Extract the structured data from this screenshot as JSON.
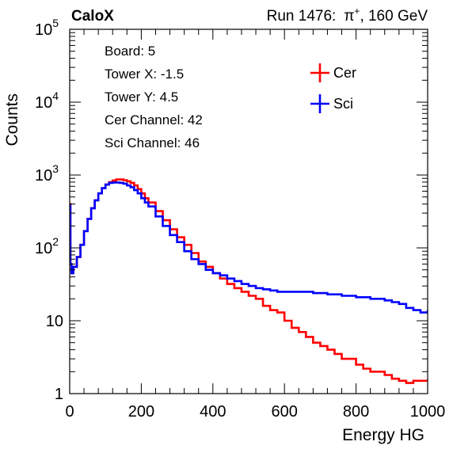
{
  "header": {
    "brand": "CaloX",
    "run": "Run 1476:",
    "particle": "π",
    "particle_charge": "+",
    "beam_energy": ", 160 GeV"
  },
  "info_box": [
    "Board: 5",
    "Tower X: -1.5",
    "Tower Y: 4.5",
    "Cer Channel: 42",
    "Sci Channel: 46"
  ],
  "chart_data": {
    "type": "line",
    "xlabel": "Energy HG",
    "ylabel": "Counts",
    "xlim": [
      0,
      1000
    ],
    "ylim": [
      1,
      100000
    ],
    "yscale": "log",
    "grid": false,
    "legend_position": "top-right",
    "x_ticks": [
      "0",
      "200",
      "400",
      "600",
      "800",
      "1000"
    ],
    "y_tick_labels": [
      {
        "base": "1",
        "exp": ""
      },
      {
        "base": "10",
        "exp": ""
      },
      {
        "base": "10",
        "exp": "2"
      },
      {
        "base": "10",
        "exp": "3"
      },
      {
        "base": "10",
        "exp": "4"
      },
      {
        "base": "10",
        "exp": "5"
      }
    ],
    "series": [
      {
        "name": "Cer",
        "color": "#ff0000",
        "x": [
          0,
          2,
          5,
          10,
          20,
          30,
          40,
          50,
          60,
          70,
          80,
          90,
          100,
          110,
          120,
          130,
          140,
          150,
          160,
          170,
          180,
          190,
          200,
          210,
          220,
          240,
          260,
          280,
          300,
          320,
          340,
          360,
          380,
          400,
          420,
          440,
          460,
          480,
          500,
          520,
          540,
          560,
          580,
          600,
          620,
          640,
          660,
          680,
          700,
          720,
          740,
          760,
          780,
          800,
          820,
          840,
          860,
          880,
          900,
          920,
          940,
          960,
          980,
          1000
        ],
        "y": [
          400,
          60,
          45,
          55,
          75,
          110,
          170,
          250,
          350,
          450,
          560,
          660,
          740,
          800,
          840,
          870,
          870,
          850,
          820,
          780,
          720,
          640,
          560,
          480,
          420,
          320,
          240,
          180,
          140,
          110,
          85,
          65,
          55,
          45,
          38,
          32,
          28,
          25,
          22,
          20,
          16,
          14,
          13,
          10,
          8,
          7,
          6,
          5,
          4.5,
          4,
          3.5,
          3,
          3,
          2.5,
          2.2,
          2,
          2,
          1.8,
          1.6,
          1.5,
          1.4,
          1.5,
          1.5,
          1.5
        ]
      },
      {
        "name": "Sci",
        "color": "#0000ff",
        "x": [
          0,
          2,
          5,
          10,
          20,
          30,
          40,
          50,
          60,
          70,
          80,
          90,
          100,
          110,
          120,
          130,
          140,
          150,
          160,
          170,
          180,
          190,
          200,
          210,
          220,
          240,
          260,
          280,
          300,
          320,
          340,
          360,
          380,
          400,
          420,
          440,
          460,
          480,
          500,
          520,
          540,
          560,
          580,
          600,
          620,
          640,
          660,
          680,
          700,
          720,
          740,
          760,
          780,
          800,
          820,
          840,
          860,
          880,
          900,
          920,
          940,
          960,
          980,
          1000
        ],
        "y": [
          380,
          60,
          45,
          55,
          75,
          110,
          170,
          250,
          350,
          450,
          560,
          660,
          740,
          780,
          790,
          790,
          780,
          760,
          720,
          680,
          620,
          560,
          480,
          420,
          370,
          270,
          200,
          150,
          120,
          90,
          70,
          60,
          50,
          45,
          42,
          38,
          35,
          32,
          30,
          28,
          27,
          26,
          25,
          25,
          25,
          25,
          25,
          24,
          24,
          23,
          23,
          22,
          22,
          21,
          21,
          20,
          20,
          19,
          18,
          17,
          15,
          14,
          13,
          14
        ]
      }
    ]
  }
}
